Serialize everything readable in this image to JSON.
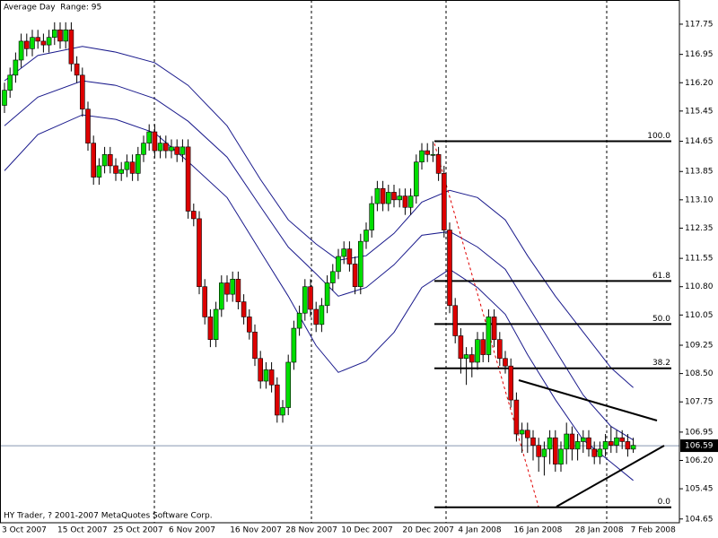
{
  "chart_data": {
    "type": "candlestick",
    "title": "Average Day  Range: 95",
    "footer": "HY Trader, ? 2001-2007 MetaQuotes Software Corp.",
    "up_color": "#00dd00",
    "down_color": "#dd0000",
    "categories": [
      "3 Oct 2007",
      null,
      null,
      null,
      null,
      null,
      null,
      null,
      null,
      null,
      "15 Oct 2007",
      null,
      null,
      null,
      null,
      null,
      null,
      null,
      null,
      null,
      "25 Oct 2007",
      null,
      null,
      null,
      null,
      null,
      null,
      null,
      null,
      null,
      "6 Nov 2007",
      null,
      null,
      null,
      null,
      null,
      null,
      null,
      null,
      null,
      null,
      "16 Nov 2007",
      null,
      null,
      null,
      null,
      null,
      null,
      null,
      null,
      null,
      "28 Nov 2007",
      null,
      null,
      null,
      null,
      null,
      null,
      null,
      null,
      null,
      "10 Dec 2007",
      null,
      null,
      null,
      null,
      null,
      null,
      null,
      null,
      null,
      null,
      "20 Dec 2007",
      null,
      null,
      null,
      null,
      null,
      null,
      null,
      null,
      null,
      "4 Jan 2008",
      null,
      null,
      null,
      null,
      null,
      null,
      null,
      null,
      null,
      "16 Jan 2008",
      null,
      null,
      null,
      null,
      null,
      null,
      null,
      null,
      null,
      null,
      "28 Jan 2008",
      null,
      null,
      null,
      null,
      null,
      null,
      null,
      null,
      null,
      "7 Feb 2008"
    ],
    "open": [
      115.6,
      116.0,
      116.4,
      116.8,
      117.3,
      117.1,
      117.4,
      117.3,
      117.2,
      117.4,
      117.6,
      117.3,
      117.6,
      116.7,
      116.4,
      115.5,
      114.6,
      113.7,
      114.0,
      114.3,
      114.0,
      113.8,
      113.9,
      114.1,
      113.8,
      114.3,
      114.6,
      114.9,
      114.4,
      114.6,
      114.4,
      114.5,
      114.3,
      114.5,
      112.8,
      112.6,
      110.8,
      110.0,
      109.4,
      110.2,
      110.9,
      110.6,
      111.0,
      110.4,
      110.0,
      109.6,
      108.9,
      108.3,
      108.6,
      108.2,
      107.4,
      107.6,
      108.8,
      109.7,
      110.1,
      110.8,
      110.2,
      109.8,
      110.3,
      110.9,
      111.2,
      111.6,
      111.8,
      111.4,
      110.8,
      112.0,
      112.3,
      113.0,
      113.4,
      113.0,
      113.3,
      113.1,
      113.2,
      112.9,
      113.2,
      114.1,
      114.4,
      114.3,
      114.3,
      113.8,
      112.3,
      110.3,
      109.5,
      108.9,
      109.0,
      108.8,
      109.4,
      109.0,
      110.0,
      109.4,
      108.9,
      108.7,
      107.8,
      106.9,
      107.0,
      106.8,
      106.6,
      106.3,
      106.5,
      106.8,
      106.1,
      106.5,
      106.9,
      106.5,
      106.7,
      106.8,
      106.5,
      106.3,
      106.5,
      106.7,
      106.6,
      106.8,
      106.7,
      106.5
    ],
    "high": [
      116.2,
      116.6,
      117.0,
      117.5,
      117.5,
      117.6,
      117.6,
      117.5,
      117.6,
      117.8,
      117.8,
      117.8,
      117.8,
      116.9,
      116.6,
      115.7,
      114.8,
      114.2,
      114.5,
      114.5,
      114.2,
      114.1,
      114.3,
      114.3,
      114.5,
      114.8,
      115.1,
      115.1,
      114.8,
      114.8,
      114.7,
      114.7,
      114.7,
      114.7,
      113.0,
      112.8,
      111.0,
      110.2,
      110.4,
      111.1,
      111.1,
      111.2,
      111.2,
      110.6,
      110.2,
      109.8,
      109.1,
      108.8,
      108.8,
      108.4,
      107.8,
      109.0,
      109.9,
      110.3,
      111.0,
      111.0,
      110.4,
      110.5,
      111.1,
      111.4,
      111.8,
      112.0,
      112.0,
      111.6,
      112.2,
      112.5,
      113.2,
      113.6,
      113.6,
      113.5,
      113.5,
      113.4,
      113.4,
      113.4,
      114.3,
      114.6,
      114.6,
      114.65,
      114.5,
      114.0,
      112.5,
      110.5,
      109.7,
      109.2,
      109.2,
      109.6,
      109.6,
      110.2,
      110.2,
      109.6,
      109.1,
      108.9,
      108.0,
      107.2,
      107.2,
      107.0,
      106.8,
      106.7,
      107.0,
      107.0,
      106.7,
      107.2,
      107.1,
      106.9,
      107.0,
      107.0,
      106.7,
      106.7,
      106.9,
      107.1,
      107.0,
      107.0,
      106.9,
      106.8
    ],
    "low": [
      115.4,
      115.8,
      116.2,
      116.6,
      116.9,
      116.9,
      117.1,
      117.0,
      117.0,
      117.2,
      117.1,
      117.1,
      116.5,
      116.2,
      115.3,
      114.4,
      113.5,
      113.5,
      113.8,
      113.8,
      113.6,
      113.6,
      113.7,
      113.6,
      113.6,
      114.1,
      114.4,
      114.2,
      114.2,
      114.2,
      114.2,
      114.1,
      114.1,
      112.6,
      112.4,
      110.6,
      109.8,
      109.2,
      109.2,
      110.0,
      110.4,
      110.4,
      110.2,
      109.8,
      109.4,
      108.7,
      108.1,
      108.1,
      108.0,
      107.2,
      107.2,
      107.4,
      108.6,
      109.5,
      109.9,
      110.0,
      109.6,
      109.6,
      110.1,
      110.7,
      111.0,
      111.4,
      111.2,
      110.6,
      110.6,
      111.8,
      112.1,
      112.8,
      112.8,
      112.8,
      112.9,
      112.9,
      112.7,
      112.7,
      113.0,
      113.9,
      114.1,
      114.1,
      113.6,
      112.1,
      110.1,
      109.3,
      108.5,
      108.2,
      108.4,
      108.6,
      108.8,
      108.8,
      109.2,
      108.7,
      108.5,
      107.6,
      106.7,
      106.4,
      106.4,
      106.2,
      105.9,
      105.8,
      106.1,
      105.9,
      105.9,
      106.1,
      106.2,
      106.2,
      106.4,
      106.3,
      106.1,
      106.1,
      106.3,
      106.4,
      106.4,
      106.5,
      106.3,
      106.4
    ],
    "close": [
      116.0,
      116.4,
      116.8,
      117.3,
      117.1,
      117.4,
      117.3,
      117.2,
      117.4,
      117.6,
      117.3,
      117.6,
      116.7,
      116.4,
      115.5,
      114.6,
      113.7,
      114.0,
      114.3,
      114.0,
      113.8,
      113.9,
      114.1,
      113.8,
      114.3,
      114.6,
      114.9,
      114.4,
      114.6,
      114.4,
      114.5,
      114.3,
      114.5,
      112.8,
      112.6,
      110.8,
      110.0,
      109.4,
      110.2,
      110.9,
      110.6,
      111.0,
      110.4,
      110.0,
      109.6,
      108.9,
      108.3,
      108.6,
      108.2,
      107.4,
      107.6,
      108.8,
      109.7,
      110.1,
      110.8,
      110.2,
      109.8,
      110.3,
      110.9,
      111.2,
      111.6,
      111.8,
      111.4,
      110.8,
      112.0,
      112.3,
      113.0,
      113.4,
      113.0,
      113.3,
      113.1,
      113.2,
      112.9,
      113.2,
      114.1,
      114.4,
      114.3,
      114.3,
      113.8,
      112.3,
      110.3,
      109.5,
      108.9,
      109.0,
      108.8,
      109.4,
      109.0,
      110.0,
      109.4,
      108.9,
      108.7,
      107.8,
      106.9,
      107.0,
      106.8,
      106.6,
      106.3,
      106.5,
      106.8,
      106.1,
      106.5,
      106.9,
      106.5,
      106.7,
      106.8,
      106.5,
      106.3,
      106.5,
      106.7,
      106.6,
      106.8,
      106.7,
      106.5,
      106.6
    ],
    "bands": [
      {
        "color": "#1a1a8c",
        "x": [
          0,
          6,
          14,
          20,
          27,
          33,
          40,
          46,
          51,
          56,
          60,
          65,
          70,
          75,
          80,
          85,
          90,
          94,
          99,
          104,
          109,
          113
        ],
        "values": [
          116.25,
          116.92,
          117.16,
          117.01,
          116.73,
          116.13,
          115.06,
          113.64,
          112.57,
          111.93,
          111.5,
          111.62,
          112.21,
          113.04,
          113.35,
          113.16,
          112.57,
          111.62,
          110.55,
          109.6,
          108.65,
          108.13
        ]
      },
      {
        "color": "#1a1a8c",
        "x": [
          0,
          6,
          14,
          20,
          27,
          33,
          40,
          46,
          51,
          56,
          60,
          65,
          70,
          75,
          80,
          85,
          90,
          94,
          99,
          104,
          109,
          113
        ],
        "values": [
          115.06,
          115.82,
          116.25,
          116.13,
          115.78,
          115.18,
          114.23,
          112.92,
          111.85,
          111.14,
          110.55,
          110.78,
          111.38,
          112.16,
          112.26,
          111.85,
          111.26,
          110.31,
          109.12,
          107.93,
          107.1,
          106.74
        ]
      },
      {
        "color": "#1a1a8c",
        "x": [
          0,
          6,
          14,
          20,
          27,
          33,
          40,
          46,
          51,
          56,
          60,
          65,
          70,
          75,
          80,
          85,
          90,
          94,
          99,
          104,
          109,
          113
        ],
        "values": [
          113.87,
          114.83,
          115.35,
          115.23,
          114.87,
          114.11,
          113.16,
          111.73,
          110.55,
          109.24,
          108.53,
          108.83,
          109.59,
          110.78,
          111.26,
          110.78,
          110.07,
          109.0,
          107.81,
          106.74,
          106.15,
          105.67
        ]
      }
    ],
    "fibonacci": [
      {
        "label": "100.0",
        "price": 114.65
      },
      {
        "label": "61.8",
        "price": 110.95
      },
      {
        "label": "50.0",
        "price": 109.81
      },
      {
        "label": "38.2",
        "price": 108.64
      },
      {
        "label": "0.0",
        "price": 104.96
      }
    ],
    "current_price": 106.59,
    "ylim": [
      104.55,
      118.39
    ],
    "yticks": [
      117.75,
      116.95,
      {
        "value": 116.2,
        "label": "116.20"
      },
      115.45,
      114.65,
      113.85,
      {
        "value": 113.1,
        "label": "113.10"
      },
      112.35,
      111.55,
      {
        "value": 110.8,
        "label": "110.80"
      },
      110.05,
      109.25,
      {
        "value": 108.5,
        "label": "108.50"
      },
      107.75,
      106.95,
      {
        "value": 106.2,
        "label": "106.20"
      },
      105.45,
      104.65
    ]
  }
}
